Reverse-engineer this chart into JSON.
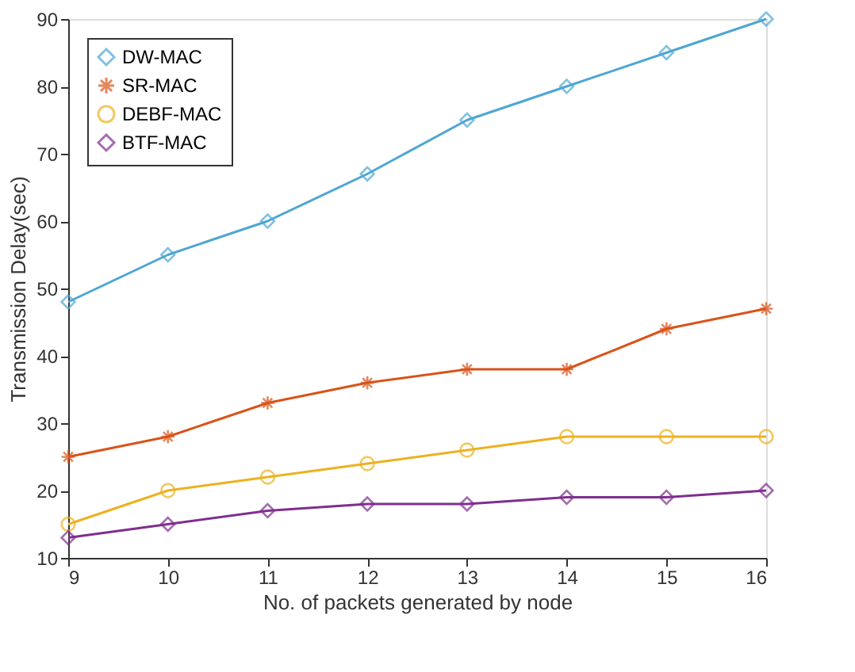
{
  "chart_data": {
    "type": "line",
    "xlabel": "No. of packets generated by node",
    "ylabel": "Transmission Delay(sec)",
    "x": [
      9,
      10,
      11,
      12,
      13,
      14,
      15,
      16
    ],
    "series": [
      {
        "name": "DW-MAC",
        "color": "#4da6d3",
        "marker": "diamond",
        "values": [
          48,
          55,
          60,
          67,
          75,
          80,
          85,
          90
        ]
      },
      {
        "name": "SR-MAC",
        "color": "#d95319",
        "marker": "cross",
        "values": [
          25,
          28,
          33,
          36,
          38,
          38,
          44,
          47
        ]
      },
      {
        "name": "DEBF-MAC",
        "color": "#edb120",
        "marker": "circle",
        "values": [
          15,
          20,
          22,
          24,
          26,
          28,
          28,
          28
        ]
      },
      {
        "name": "BTF-MAC",
        "color": "#7e2f8e",
        "marker": "diamond",
        "values": [
          13,
          15,
          17,
          18,
          18,
          19,
          19,
          20
        ]
      }
    ],
    "xlim": [
      9,
      16
    ],
    "xticks": [
      9,
      10,
      11,
      12,
      13,
      14,
      15,
      16
    ],
    "ylim": [
      10,
      90
    ],
    "yticks": [
      10,
      20,
      30,
      40,
      50,
      60,
      70,
      80,
      90
    ],
    "grid": false,
    "legend": "top left",
    "line_style": "solid"
  }
}
